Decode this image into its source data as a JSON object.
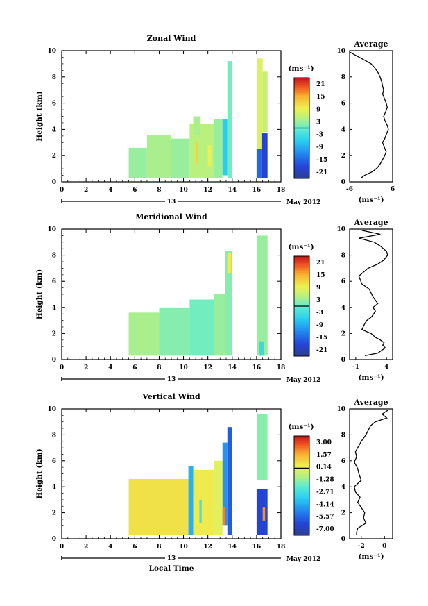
{
  "chart_data": [
    {
      "type": "heatmap",
      "title": "Zonal Wind",
      "ylabel": "Height (km)",
      "xticks": [
        "0",
        "2",
        "4",
        "6",
        "8",
        "10",
        "12",
        "14",
        "16",
        "18"
      ],
      "yticks": [
        "0",
        "2",
        "4",
        "6",
        "8",
        "10"
      ],
      "xlim": [
        0,
        18
      ],
      "ylim": [
        0,
        10
      ],
      "date_day": "13",
      "date_month": "May 2012",
      "colorbar": {
        "unit": "(ms⁻¹)",
        "ticks": [
          "21",
          "15",
          "9",
          "3",
          "-3",
          "-9",
          "-15",
          "-21"
        ],
        "range": [
          -24,
          24
        ]
      },
      "blocks": [
        {
          "x": [
            5.5,
            7.0
          ],
          "y": [
            0.3,
            2.6
          ],
          "v": 3
        },
        {
          "x": [
            7.0,
            9.0
          ],
          "y": [
            0.3,
            3.6
          ],
          "v": 4
        },
        {
          "x": [
            9.0,
            10.5
          ],
          "y": [
            0.3,
            3.3
          ],
          "v": 3
        },
        {
          "x": [
            10.5,
            12.5
          ],
          "y": [
            0.3,
            4.4
          ],
          "v": 5
        },
        {
          "x": [
            11.0,
            11.2
          ],
          "y": [
            1.4,
            3.0
          ],
          "v": 12
        },
        {
          "x": [
            12.0,
            12.3
          ],
          "y": [
            1.2,
            2.8
          ],
          "v": 9
        },
        {
          "x": [
            12.5,
            13.2
          ],
          "y": [
            0.3,
            4.8
          ],
          "v": 3
        },
        {
          "x": [
            10.8,
            11.4
          ],
          "y": [
            3.6,
            5.0
          ],
          "v": 4
        },
        {
          "x": [
            13.2,
            13.6
          ],
          "y": [
            0.5,
            4.8
          ],
          "v": -6
        },
        {
          "x": [
            13.6,
            14.0
          ],
          "y": [
            0.3,
            9.2
          ],
          "v": 1
        },
        {
          "x": [
            16.0,
            16.5
          ],
          "y": [
            0.3,
            9.4
          ],
          "v": 8
        },
        {
          "x": [
            16.5,
            16.9
          ],
          "y": [
            3.8,
            8.4
          ],
          "v": 6
        },
        {
          "x": [
            16.0,
            16.4
          ],
          "y": [
            0.3,
            2.5
          ],
          "v": -15
        },
        {
          "x": [
            16.4,
            16.9
          ],
          "y": [
            0.3,
            3.7
          ],
          "v": -19
        }
      ],
      "profile": {
        "title": "Average",
        "xlim": [
          -6,
          6
        ],
        "xticks": [
          "-6",
          "6"
        ],
        "xlabel": "(ms⁻¹)",
        "x": [
          -6,
          -4,
          -2,
          0,
          1,
          2,
          2.5,
          3,
          3.2,
          3.5,
          3.2,
          3.8,
          4.2,
          4.5,
          4,
          3.5,
          3.8,
          4.5,
          4.8,
          4.2,
          3.8,
          3.2,
          3.6,
          4.2,
          3.8,
          3.2,
          2.6,
          1.8,
          0.5,
          -1.8,
          -2.8
        ],
        "y": [
          9.9,
          9.6,
          9.3,
          9.0,
          8.7,
          8.3,
          8.0,
          7.6,
          7.3,
          7.0,
          6.7,
          6.3,
          6.0,
          5.7,
          5.3,
          5.0,
          4.7,
          4.3,
          4.0,
          3.6,
          3.3,
          3.0,
          2.7,
          2.3,
          2.0,
          1.7,
          1.4,
          1.1,
          0.8,
          0.5,
          0.3
        ]
      }
    },
    {
      "type": "heatmap",
      "title": "Meridional Wind",
      "ylabel": "Height (km)",
      "xticks": [
        "0",
        "2",
        "4",
        "6",
        "8",
        "10",
        "12",
        "14",
        "16",
        "18"
      ],
      "yticks": [
        "0",
        "2",
        "4",
        "6",
        "8",
        "10"
      ],
      "xlim": [
        0,
        18
      ],
      "ylim": [
        0,
        10
      ],
      "date_day": "13",
      "date_month": "May 2012",
      "colorbar": {
        "unit": "(ms⁻¹)",
        "ticks": [
          "21",
          "15",
          "9",
          "3",
          "-3",
          "-9",
          "-15",
          "-21"
        ],
        "range": [
          -24,
          24
        ]
      },
      "blocks": [
        {
          "x": [
            5.5,
            8.0
          ],
          "y": [
            0.3,
            3.6
          ],
          "v": 4
        },
        {
          "x": [
            8.0,
            10.5
          ],
          "y": [
            0.3,
            4.0
          ],
          "v": 2
        },
        {
          "x": [
            10.5,
            12.5
          ],
          "y": [
            0.3,
            4.6
          ],
          "v": 1
        },
        {
          "x": [
            12.5,
            13.4
          ],
          "y": [
            0.3,
            5.0
          ],
          "v": 3
        },
        {
          "x": [
            13.4,
            14.0
          ],
          "y": [
            0.3,
            8.3
          ],
          "v": 2
        },
        {
          "x": [
            13.6,
            13.9
          ],
          "y": [
            6.6,
            8.2
          ],
          "v": 10
        },
        {
          "x": [
            16.0,
            16.9
          ],
          "y": [
            0.3,
            9.5
          ],
          "v": 3
        },
        {
          "x": [
            16.2,
            16.6
          ],
          "y": [
            0.3,
            1.4
          ],
          "v": -4
        }
      ],
      "profile": {
        "title": "Average",
        "xlim": [
          -2,
          5
        ],
        "xticks": [
          "-1",
          "4"
        ],
        "xlabel": "(ms⁻¹)",
        "x": [
          0,
          3,
          -0.5,
          2,
          3,
          4,
          4.2,
          3.5,
          2.5,
          1,
          -0.5,
          0,
          1.2,
          1.8,
          2.6,
          1.8,
          2.2,
          1.6,
          0.8,
          0.4,
          0,
          1.5,
          2.2,
          3,
          3.6,
          3.4,
          3.8,
          3.2,
          2.6,
          0.5
        ],
        "y": [
          9.9,
          9.6,
          9.3,
          9.0,
          8.7,
          8.3,
          8.0,
          7.6,
          7.3,
          7.0,
          6.4,
          5.8,
          5.4,
          4.8,
          4.3,
          4.0,
          3.7,
          3.3,
          3.0,
          2.7,
          2.3,
          2.0,
          1.7,
          1.5,
          1.3,
          1.1,
          0.9,
          0.7,
          0.5,
          0.3
        ]
      }
    },
    {
      "type": "heatmap",
      "title": "Vertical Wind",
      "ylabel": "Height (km)",
      "xlabel": "Local Time",
      "xticks": [
        "0",
        "2",
        "4",
        "6",
        "8",
        "10",
        "12",
        "14",
        "16",
        "18"
      ],
      "yticks": [
        "0",
        "2",
        "4",
        "6",
        "8",
        "10"
      ],
      "xlim": [
        0,
        18
      ],
      "ylim": [
        0,
        10
      ],
      "date_day": "13",
      "date_month": "May 2012",
      "colorbar": {
        "unit": "(ms⁻¹)",
        "ticks": [
          "3.00",
          "1.57",
          "0.14",
          "-1.28",
          "-2.71",
          "-4.14",
          "-5.57",
          "-7.00"
        ],
        "range": [
          -7.7,
          3.7
        ]
      },
      "blocks": [
        {
          "x": [
            5.5,
            10.4
          ],
          "y": [
            0.3,
            4.6
          ],
          "v": 0.6
        },
        {
          "x": [
            10.4,
            10.8
          ],
          "y": [
            0.3,
            5.6
          ],
          "v": -4
        },
        {
          "x": [
            10.8,
            12.5
          ],
          "y": [
            0.3,
            5.3
          ],
          "v": 0.4
        },
        {
          "x": [
            11.3,
            11.5
          ],
          "y": [
            1.2,
            3.0
          ],
          "v": -2.5
        },
        {
          "x": [
            12.5,
            13.2
          ],
          "y": [
            0.3,
            6.0
          ],
          "v": 0
        },
        {
          "x": [
            13.2,
            13.6
          ],
          "y": [
            1.0,
            7.4
          ],
          "v": -4.6
        },
        {
          "x": [
            13.6,
            14.0
          ],
          "y": [
            0.3,
            8.6
          ],
          "v": -5.8
        },
        {
          "x": [
            13.2,
            13.4
          ],
          "y": [
            1.0,
            2.4
          ],
          "v": 2.2
        },
        {
          "x": [
            16.0,
            16.9
          ],
          "y": [
            4.5,
            9.6
          ],
          "v": -1.5
        },
        {
          "x": [
            16.0,
            16.9
          ],
          "y": [
            0.3,
            3.8
          ],
          "v": -6.4
        },
        {
          "x": [
            16.5,
            16.7
          ],
          "y": [
            1.4,
            2.4
          ],
          "v": 2.0
        }
      ],
      "profile": {
        "title": "Average",
        "xlim": [
          -3,
          0.7
        ],
        "xticks": [
          "-2",
          "0"
        ],
        "xlabel": "(ms⁻¹)",
        "x": [
          0.3,
          -0.2,
          0.2,
          -0.8,
          -1.2,
          -1.6,
          -2.0,
          -2.5,
          -2.4,
          -2.6,
          -2.3,
          -2.2,
          -2.0,
          -2.6,
          -2.5,
          -2.1,
          -2.3,
          -2.0,
          -1.7,
          -1.8,
          -1.6,
          -2.3,
          -2.4,
          -2.4
        ],
        "y": [
          9.9,
          9.6,
          9.3,
          9.0,
          8.7,
          8.0,
          7.5,
          6.7,
          6.3,
          5.9,
          5.4,
          5.0,
          4.5,
          4.0,
          3.6,
          3.2,
          2.8,
          2.4,
          2.0,
          1.6,
          1.2,
          0.8,
          0.5,
          0.3
        ]
      }
    }
  ],
  "colors": {
    "axis": "#000000",
    "background": "#ffffff",
    "empty": "#ffffff"
  }
}
